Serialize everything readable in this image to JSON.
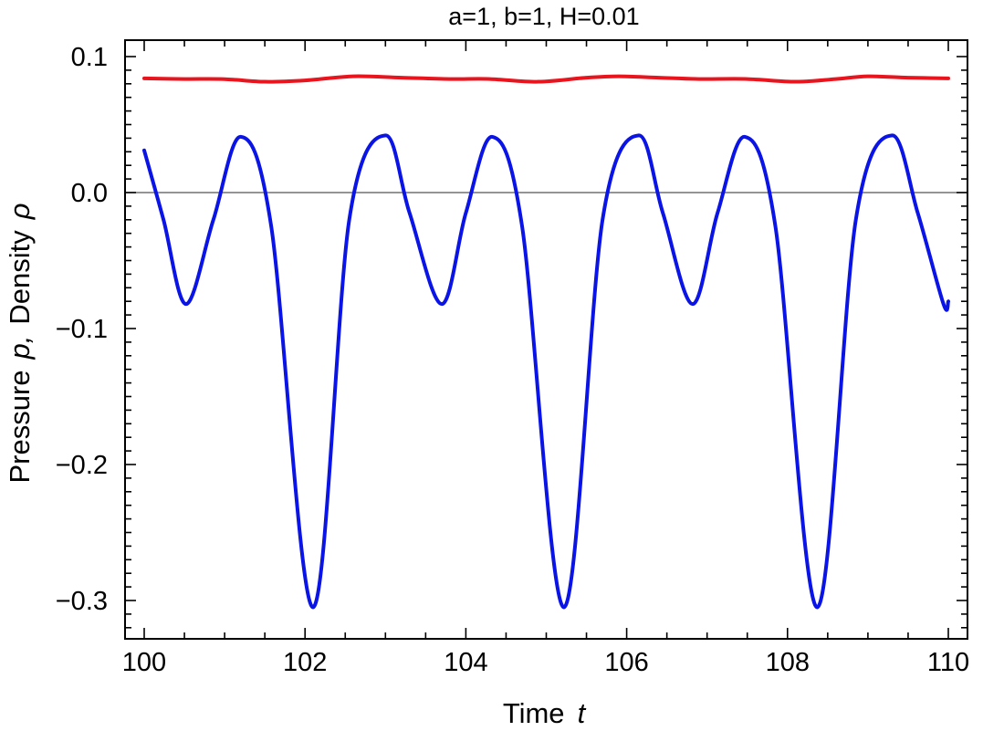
{
  "chart_data": {
    "type": "line",
    "title": "a=1, b=1, H=0.01",
    "xlabel": {
      "text": "Time",
      "symbol": "t"
    },
    "ylabel": {
      "text_p": "Pressure",
      "symbol_p": "p,",
      "text_rho": "Density",
      "symbol_rho": "ρ"
    },
    "xlim": [
      100,
      110
    ],
    "ylim": [
      -0.325,
      0.105
    ],
    "xticks": [
      100,
      102,
      104,
      106,
      108,
      110
    ],
    "xtick_labels": [
      "100",
      "102",
      "104",
      "106",
      "108",
      "110"
    ],
    "yticks": [
      0.1,
      0.0,
      -0.1,
      -0.2,
      -0.3
    ],
    "ytick_labels": [
      "0.1",
      "0.0",
      "−0.1",
      "−0.2",
      "−0.3"
    ],
    "grid": false,
    "reference_line_y": 0,
    "series": [
      {
        "color": "#e8141e",
        "points": [
          [
            100.0,
            0.084
          ],
          [
            100.5,
            0.0835
          ],
          [
            101.0,
            0.0834
          ],
          [
            101.5,
            0.0815
          ],
          [
            102.0,
            0.0825
          ],
          [
            102.6,
            0.0855
          ],
          [
            103.2,
            0.0845
          ],
          [
            103.8,
            0.0835
          ],
          [
            104.3,
            0.0835
          ],
          [
            104.9,
            0.0815
          ],
          [
            105.5,
            0.0845
          ],
          [
            105.9,
            0.0855
          ],
          [
            106.4,
            0.0845
          ],
          [
            106.9,
            0.0835
          ],
          [
            107.5,
            0.0835
          ],
          [
            108.1,
            0.0815
          ],
          [
            108.6,
            0.0835
          ],
          [
            109.0,
            0.0855
          ],
          [
            109.5,
            0.0845
          ],
          [
            110.0,
            0.084
          ]
        ]
      },
      {
        "color": "#0a14e6",
        "points": [
          [
            100.0,
            0.031
          ],
          [
            100.24,
            -0.02
          ],
          [
            100.52,
            -0.082
          ],
          [
            100.86,
            -0.02
          ],
          [
            101.2,
            0.041
          ],
          [
            101.58,
            -0.025
          ],
          [
            102.1,
            -0.305
          ],
          [
            102.55,
            -0.02
          ],
          [
            103.0,
            0.042
          ],
          [
            103.3,
            -0.015
          ],
          [
            103.7,
            -0.082
          ],
          [
            104.0,
            -0.015
          ],
          [
            104.33,
            0.041
          ],
          [
            104.7,
            -0.025
          ],
          [
            105.22,
            -0.305
          ],
          [
            105.7,
            -0.02
          ],
          [
            106.15,
            0.042
          ],
          [
            106.45,
            -0.015
          ],
          [
            106.82,
            -0.082
          ],
          [
            107.13,
            -0.015
          ],
          [
            107.47,
            0.041
          ],
          [
            107.85,
            -0.025
          ],
          [
            108.37,
            -0.305
          ],
          [
            108.85,
            -0.02
          ],
          [
            109.3,
            0.042
          ],
          [
            109.62,
            -0.015
          ],
          [
            109.94,
            -0.082
          ],
          [
            110.0,
            -0.08
          ]
        ]
      }
    ]
  }
}
